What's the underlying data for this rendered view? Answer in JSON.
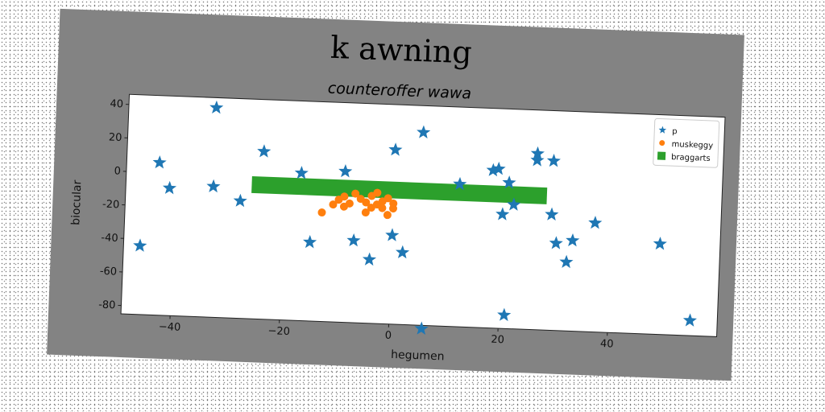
{
  "chart_data": {
    "type": "scatter",
    "title": "k awning",
    "subtitle": "counteroffer wawa",
    "xlabel": "hegumen",
    "ylabel": "biocular",
    "xlim": [
      -49,
      60
    ],
    "ylim": [
      -85,
      46
    ],
    "xticks": [
      -40,
      -20,
      0,
      20,
      40
    ],
    "yticks": [
      40,
      20,
      0,
      -20,
      -40,
      -60,
      -80
    ],
    "grid": false,
    "legend_position": "top-right",
    "colors": {
      "star": "#1f77b4",
      "dot": "#ff7f0e",
      "band": "#2ca02c",
      "figure_bg": "#838383",
      "plot_bg": "#ffffff"
    },
    "series": [
      {
        "name": "p",
        "marker": "star",
        "points": [
          [
            -33,
            40
          ],
          [
            -24,
            15
          ],
          [
            -43,
            6
          ],
          [
            -41,
            -9
          ],
          [
            -33,
            -7
          ],
          [
            -28,
            -15
          ],
          [
            -17,
            3
          ],
          [
            -9,
            5
          ],
          [
            -46,
            -44
          ],
          [
            -15,
            -38
          ],
          [
            -7,
            -36
          ],
          [
            -4,
            -47
          ],
          [
            0,
            -32
          ],
          [
            2,
            -42
          ],
          [
            0,
            19
          ],
          [
            5,
            30
          ],
          [
            6,
            -87
          ],
          [
            12,
            0
          ],
          [
            18,
            9
          ],
          [
            19,
            10
          ],
          [
            20,
            -17
          ],
          [
            21,
            2
          ],
          [
            22,
            -11
          ],
          [
            26,
            20
          ],
          [
            26,
            16
          ],
          [
            29,
            16
          ],
          [
            29,
            -16
          ],
          [
            30,
            -33
          ],
          [
            32,
            -44
          ],
          [
            33,
            -31
          ],
          [
            37,
            -20
          ],
          [
            49,
            -31
          ],
          [
            55,
            -76
          ],
          [
            21,
            -77
          ]
        ]
      },
      {
        "name": "muskeggy",
        "marker": "circle",
        "points": [
          [
            -13,
            -20
          ],
          [
            -11,
            -15
          ],
          [
            -10,
            -12
          ],
          [
            -9,
            -10
          ],
          [
            -9,
            -16
          ],
          [
            -8,
            -14
          ],
          [
            -7,
            -8
          ],
          [
            -6,
            -11
          ],
          [
            -5,
            -13
          ],
          [
            -5,
            -19
          ],
          [
            -4,
            -9
          ],
          [
            -3,
            -14
          ],
          [
            -3,
            -7
          ],
          [
            -2,
            -16
          ],
          [
            -1,
            -10
          ],
          [
            -1,
            -20
          ],
          [
            0,
            -13
          ],
          [
            0,
            -16
          ],
          [
            -2,
            -12
          ],
          [
            -4,
            -16
          ]
        ]
      },
      {
        "name": "braggarts",
        "marker": "square",
        "band": {
          "x0": -26,
          "x1": 28,
          "y0": -10,
          "y1": 0
        }
      }
    ]
  }
}
